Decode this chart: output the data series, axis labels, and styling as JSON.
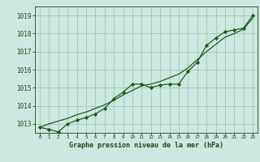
{
  "hours": [
    0,
    1,
    2,
    3,
    4,
    5,
    6,
    7,
    8,
    9,
    10,
    11,
    12,
    13,
    14,
    15,
    16,
    17,
    18,
    19,
    20,
    21,
    22,
    23
  ],
  "pressure_actual": [
    1012.8,
    1012.7,
    1012.55,
    1013.0,
    1013.2,
    1013.35,
    1013.55,
    1013.85,
    1014.4,
    1014.75,
    1015.2,
    1015.2,
    1015.0,
    1015.15,
    1015.2,
    1015.2,
    1015.9,
    1016.4,
    1017.35,
    1017.75,
    1018.1,
    1018.2,
    1018.3,
    1019.0
  ],
  "pressure_smooth": [
    1012.8,
    1013.0,
    1013.15,
    1013.3,
    1013.5,
    1013.65,
    1013.85,
    1014.05,
    1014.3,
    1014.6,
    1014.85,
    1015.1,
    1015.2,
    1015.35,
    1015.55,
    1015.75,
    1016.1,
    1016.55,
    1017.0,
    1017.4,
    1017.8,
    1018.0,
    1018.25,
    1018.85
  ],
  "ylim": [
    1012.5,
    1019.5
  ],
  "yticks": [
    1013,
    1014,
    1015,
    1016,
    1017,
    1018,
    1019
  ],
  "xlim": [
    -0.5,
    23.5
  ],
  "xticks": [
    0,
    1,
    2,
    3,
    4,
    5,
    6,
    7,
    8,
    9,
    10,
    11,
    12,
    13,
    14,
    15,
    16,
    17,
    18,
    19,
    20,
    21,
    22,
    23
  ],
  "xlabel": "Graphe pression niveau de la mer (hPa)",
  "line_color": "#1e5c1e",
  "marker_color": "#1e5c1e",
  "bg_color": "#cce8e0",
  "grid_color": "#99ccbb",
  "text_color": "#1a4a1a",
  "marker": "D",
  "marker_size": 2.2,
  "line_width": 0.9
}
